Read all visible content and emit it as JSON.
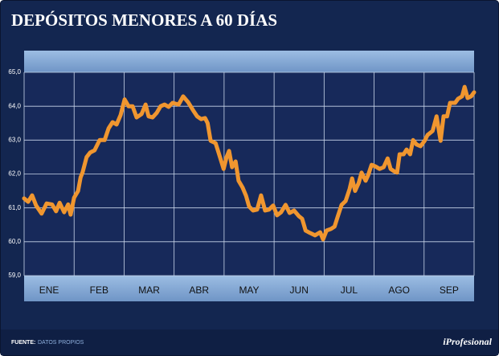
{
  "chart_data": {
    "type": "line",
    "title": "DEPÓSITOS MENORES A 60 DÍAS",
    "source_label": "FUENTE:",
    "source": "DATOS PROPIOS",
    "brand": "iProfesional",
    "xlim": [
      0,
      9
    ],
    "xticks": [
      {
        "value": 0.5,
        "label": "ENE"
      },
      {
        "value": 1.5,
        "label": "FEB"
      },
      {
        "value": 2.5,
        "label": "MAR"
      },
      {
        "value": 3.5,
        "label": "ABR"
      },
      {
        "value": 4.5,
        "label": "MAY"
      },
      {
        "value": 5.5,
        "label": "JUN"
      },
      {
        "value": 6.5,
        "label": "JUL"
      },
      {
        "value": 7.5,
        "label": "AGO"
      },
      {
        "value": 8.5,
        "label": "SEP"
      }
    ],
    "ylim": [
      59,
      65
    ],
    "yticks": [
      {
        "value": 59,
        "label": "59,0"
      },
      {
        "value": 60,
        "label": "60,0"
      },
      {
        "value": 61,
        "label": "61,0"
      },
      {
        "value": 62,
        "label": "62,0"
      },
      {
        "value": 63,
        "label": "63,0"
      },
      {
        "value": 64,
        "label": "64,0"
      },
      {
        "value": 65,
        "label": "65,0"
      }
    ],
    "grid": true,
    "x": [
      0,
      0.08,
      0.16,
      0.24,
      0.35,
      0.45,
      0.56,
      0.64,
      0.71,
      0.8,
      0.88,
      0.93,
      1.0,
      1.08,
      1.13,
      1.17,
      1.25,
      1.32,
      1.41,
      1.51,
      1.61,
      1.69,
      1.77,
      1.85,
      1.93,
      2.01,
      2.09,
      2.17,
      2.25,
      2.35,
      2.43,
      2.49,
      2.57,
      2.65,
      2.73,
      2.81,
      2.89,
      2.97,
      3.09,
      3.18,
      3.28,
      3.38,
      3.46,
      3.54,
      3.62,
      3.67,
      3.73,
      3.83,
      3.89,
      3.99,
      4.05,
      4.1,
      4.16,
      4.23,
      4.29,
      4.37,
      4.44,
      4.5,
      4.58,
      4.66,
      4.74,
      4.82,
      4.9,
      4.98,
      5.06,
      5.14,
      5.23,
      5.31,
      5.4,
      5.5,
      5.56,
      5.63,
      5.72,
      5.82,
      5.92,
      5.98,
      6.05,
      6.14,
      6.21,
      6.27,
      6.35,
      6.43,
      6.51,
      6.56,
      6.62,
      6.69,
      6.75,
      6.83,
      6.88,
      6.95,
      7.03,
      7.11,
      7.19,
      7.27,
      7.33,
      7.4,
      7.46,
      7.51,
      7.59,
      7.65,
      7.72,
      7.78,
      7.85,
      7.93,
      8.01,
      8.07,
      8.17,
      8.25,
      8.33,
      8.39,
      8.46,
      8.52,
      8.62,
      8.68,
      8.76,
      8.81,
      8.87,
      8.94,
      9.0
    ],
    "series": [
      {
        "color": "#f0962f",
        "values": [
          61.28,
          61.18,
          61.37,
          61.07,
          60.83,
          61.13,
          61.1,
          60.9,
          61.15,
          60.87,
          61.1,
          60.8,
          61.3,
          61.5,
          61.9,
          62.05,
          62.5,
          62.63,
          62.7,
          63.0,
          63.0,
          63.35,
          63.53,
          63.46,
          63.74,
          64.2,
          64.0,
          64.0,
          63.67,
          63.77,
          64.05,
          63.7,
          63.67,
          63.8,
          64.0,
          64.05,
          63.98,
          64.1,
          64.05,
          64.29,
          64.12,
          63.88,
          63.7,
          63.62,
          63.65,
          63.5,
          62.98,
          62.91,
          62.63,
          62.15,
          62.5,
          62.68,
          62.2,
          62.37,
          61.8,
          61.6,
          61.35,
          61.04,
          60.92,
          60.95,
          61.37,
          60.92,
          60.95,
          61.07,
          60.78,
          60.87,
          61.09,
          60.85,
          60.92,
          60.75,
          60.68,
          60.33,
          60.26,
          60.19,
          60.28,
          60.07,
          60.33,
          60.38,
          60.45,
          60.73,
          61.09,
          61.2,
          61.56,
          61.87,
          61.5,
          61.73,
          62.04,
          61.8,
          61.96,
          62.27,
          62.22,
          62.15,
          62.2,
          62.46,
          62.15,
          62.08,
          62.04,
          62.58,
          62.58,
          62.72,
          62.58,
          63.0,
          62.87,
          62.82,
          62.98,
          63.15,
          63.27,
          63.7,
          62.98,
          63.7,
          63.7,
          64.1,
          64.1,
          64.22,
          64.29,
          64.57,
          64.24,
          64.29,
          64.41
        ]
      }
    ]
  }
}
